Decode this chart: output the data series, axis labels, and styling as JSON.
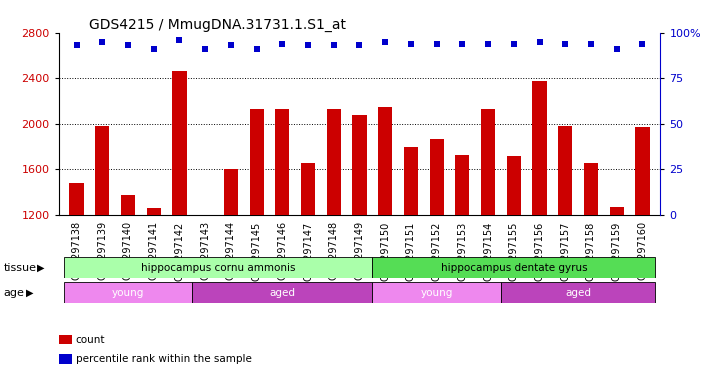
{
  "title": "GDS4215 / MmugDNA.31731.1.S1_at",
  "samples": [
    "GSM297138",
    "GSM297139",
    "GSM297140",
    "GSM297141",
    "GSM297142",
    "GSM297143",
    "GSM297144",
    "GSM297145",
    "GSM297146",
    "GSM297147",
    "GSM297148",
    "GSM297149",
    "GSM297150",
    "GSM297151",
    "GSM297152",
    "GSM297153",
    "GSM297154",
    "GSM297155",
    "GSM297156",
    "GSM297157",
    "GSM297158",
    "GSM297159",
    "GSM297160"
  ],
  "counts": [
    1480,
    1980,
    1380,
    1260,
    2460,
    1190,
    1600,
    2130,
    2130,
    1660,
    2130,
    2080,
    2150,
    1800,
    1870,
    1730,
    2130,
    1720,
    2380,
    1980,
    1660,
    1270,
    1970
  ],
  "percentile_ranks": [
    93,
    95,
    93,
    91,
    96,
    91,
    93,
    91,
    94,
    93,
    93,
    93,
    95,
    94,
    94,
    94,
    94,
    94,
    95,
    94,
    94,
    91,
    94
  ],
  "ylim_left": [
    1200,
    2800
  ],
  "ylim_right": [
    0,
    100
  ],
  "yticks_left": [
    1200,
    1600,
    2000,
    2400,
    2800
  ],
  "yticks_right": [
    0,
    25,
    50,
    75,
    100
  ],
  "bar_color": "#cc0000",
  "dot_color": "#0000cc",
  "tissue_groups": [
    {
      "label": "hippocampus cornu ammonis",
      "start": 0,
      "end": 12,
      "color": "#aaffaa"
    },
    {
      "label": "hippocampus dentate gyrus",
      "start": 12,
      "end": 23,
      "color": "#55dd55"
    }
  ],
  "age_groups": [
    {
      "label": "young",
      "start": 0,
      "end": 5,
      "color": "#ee88ee"
    },
    {
      "label": "aged",
      "start": 5,
      "end": 12,
      "color": "#bb44bb"
    },
    {
      "label": "young",
      "start": 12,
      "end": 17,
      "color": "#ee88ee"
    },
    {
      "label": "aged",
      "start": 17,
      "end": 23,
      "color": "#bb44bb"
    }
  ],
  "tissue_label": "tissue",
  "age_label": "age",
  "legend_count_color": "#cc0000",
  "legend_pct_color": "#0000cc",
  "background_color": "#ffffff"
}
